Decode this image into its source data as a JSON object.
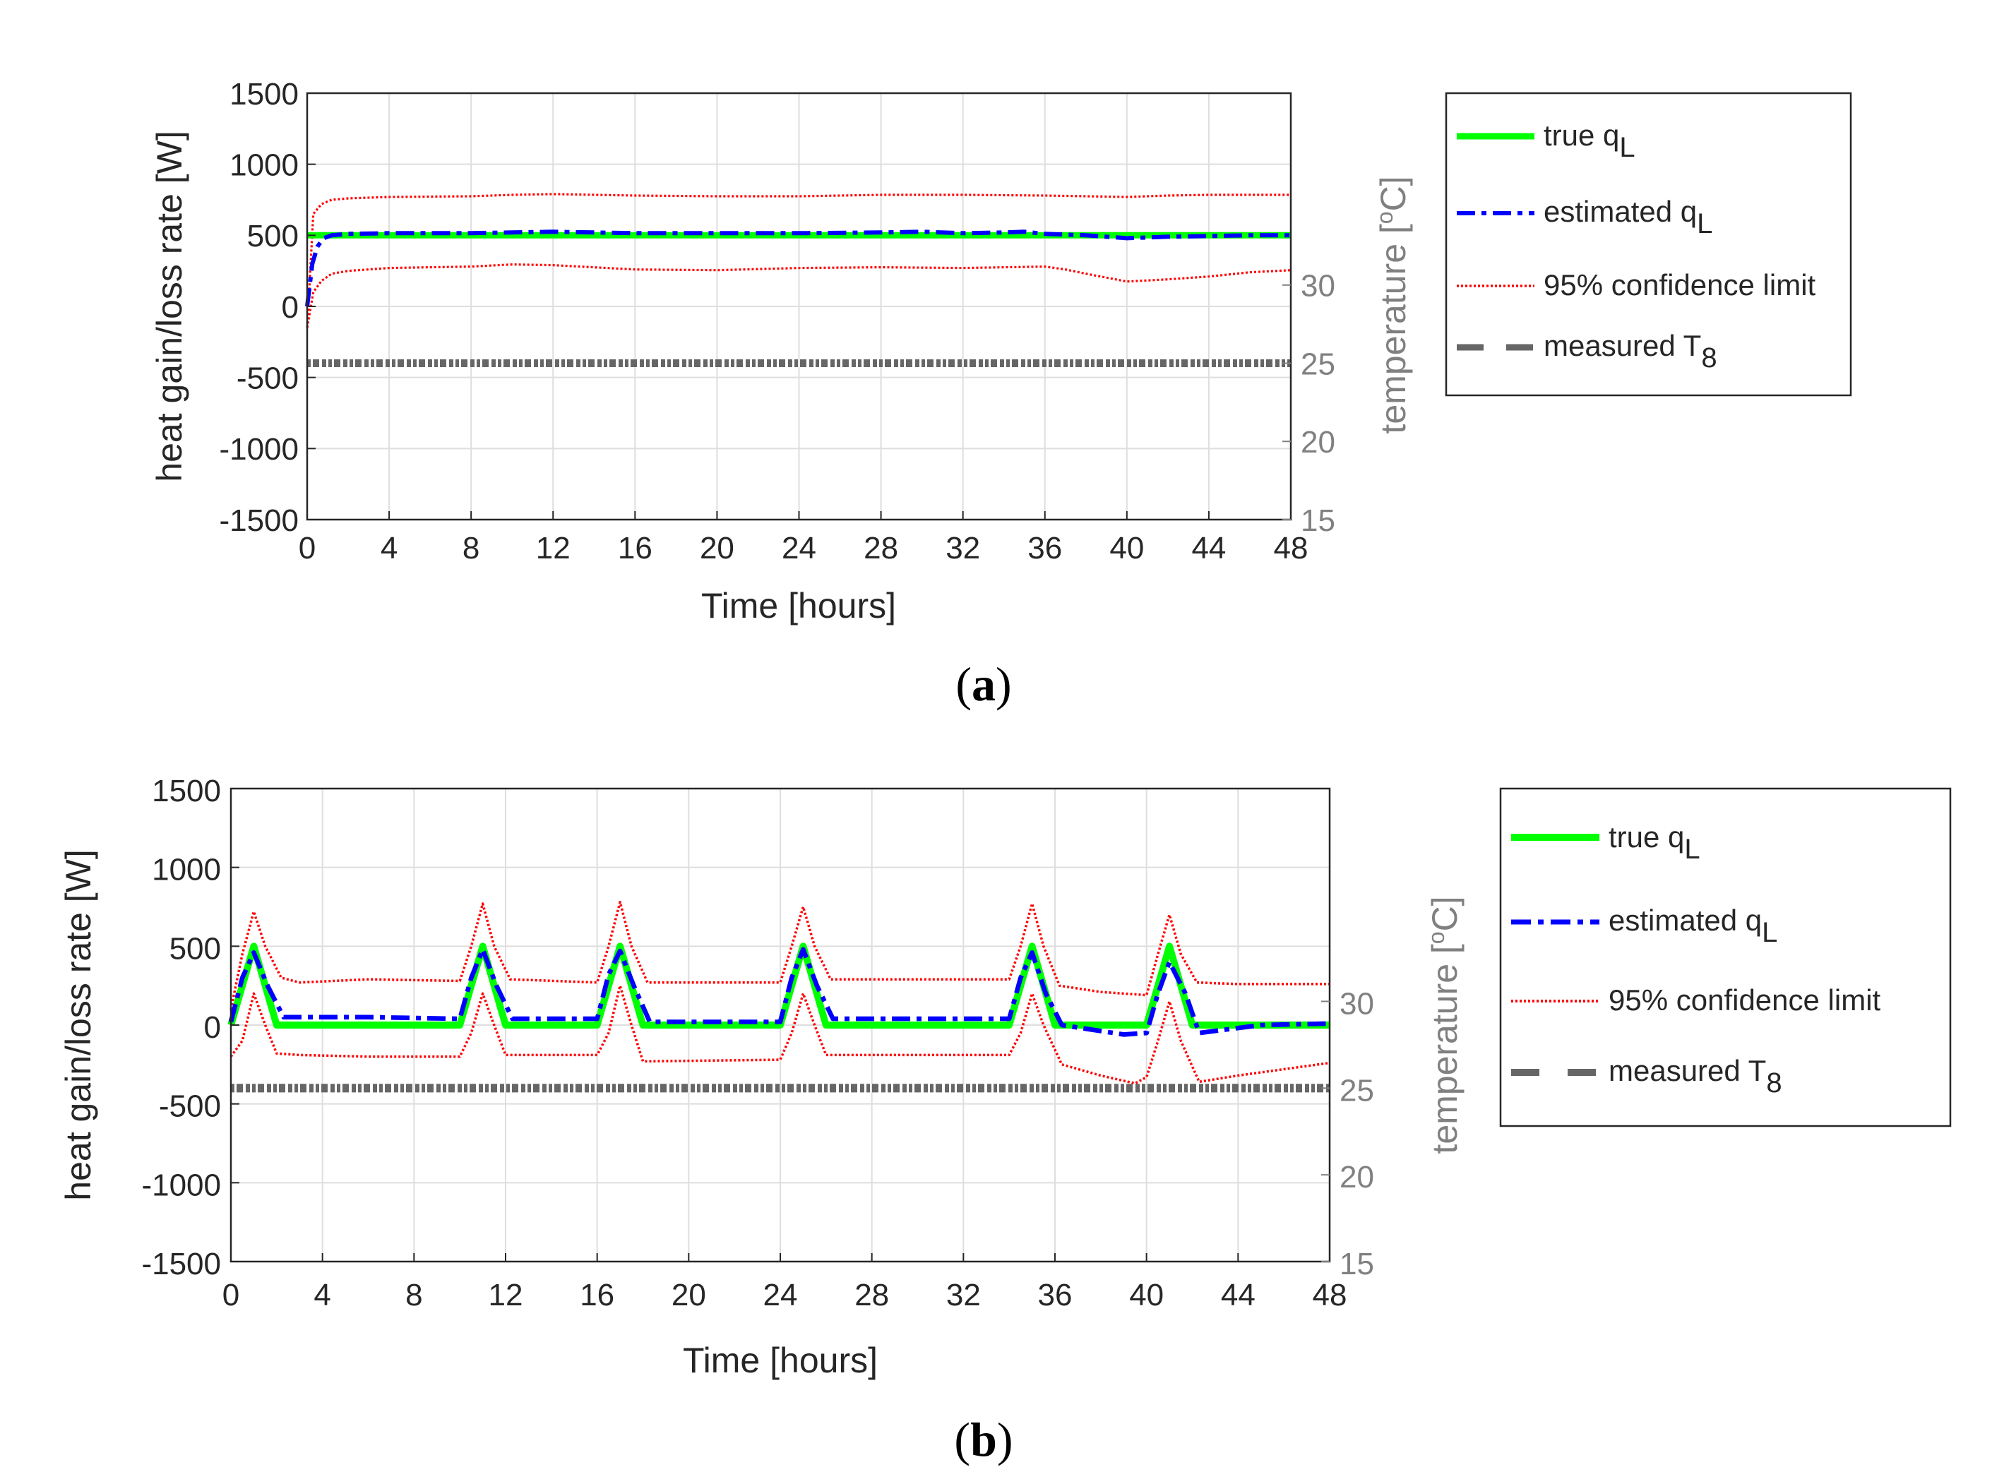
{
  "chart_data": [
    {
      "type": "line",
      "panel_label": "a",
      "xlabel": "Time [hours]",
      "ylabel": "heat gain/loss rate [W]",
      "ylabel_right": "temperature [",
      "ylabel_right_sup": "o",
      "ylabel_right_end": "C]",
      "xlim": [
        0,
        48
      ],
      "ylim": [
        -1500,
        1500
      ],
      "ylim_right": [
        15,
        42.27
      ],
      "x_ticks": [
        0,
        4,
        8,
        12,
        16,
        20,
        24,
        28,
        32,
        36,
        40,
        44,
        48
      ],
      "y_ticks": [
        -1500,
        -1000,
        -500,
        0,
        500,
        1000,
        1500
      ],
      "y_ticks_right": [
        15,
        20,
        25,
        30
      ],
      "grid": true,
      "legend_position": "outside-right",
      "legend": [
        {
          "key": "true",
          "label": "true q",
          "sub": "L"
        },
        {
          "key": "estimated",
          "label": "estimated q",
          "sub": "L"
        },
        {
          "key": "confidence",
          "label": "95% confidence limit",
          "sub": ""
        },
        {
          "key": "measured",
          "label": "measured T",
          "sub": "8"
        }
      ],
      "series": [
        {
          "name": "true qL",
          "color": "#00ff00",
          "x": [
            0,
            48
          ],
          "y": [
            500,
            500
          ]
        },
        {
          "name": "estimated qL",
          "color": "#0000ff",
          "x": [
            0,
            0.25,
            0.5,
            0.8,
            1.2,
            2,
            4,
            8,
            10,
            12,
            16,
            20,
            24,
            28,
            30,
            32,
            34,
            35,
            36,
            38,
            40,
            42,
            44,
            46,
            48
          ],
          "y": [
            0,
            300,
            420,
            480,
            500,
            510,
            515,
            515,
            520,
            525,
            515,
            515,
            515,
            520,
            525,
            515,
            520,
            525,
            510,
            500,
            480,
            490,
            495,
            500,
            500
          ]
        },
        {
          "name": "95% confidence limit (upper)",
          "color": "#ff0000",
          "x": [
            0,
            0.3,
            0.7,
            1.2,
            2,
            4,
            8,
            10,
            12,
            16,
            20,
            24,
            28,
            32,
            36,
            38,
            40,
            42,
            44,
            46,
            48
          ],
          "y": [
            -150,
            650,
            720,
            750,
            760,
            770,
            775,
            785,
            790,
            780,
            775,
            775,
            785,
            785,
            780,
            775,
            770,
            780,
            785,
            785,
            785
          ]
        },
        {
          "name": "95% confidence limit (lower)",
          "color": "#ff0000",
          "x": [
            0,
            0.3,
            0.7,
            1.2,
            2,
            4,
            8,
            10,
            12,
            16,
            20,
            24,
            28,
            32,
            36,
            37,
            38,
            40,
            42,
            44,
            46,
            48
          ],
          "y": [
            -150,
            100,
            180,
            230,
            250,
            270,
            280,
            295,
            290,
            260,
            255,
            270,
            275,
            270,
            280,
            260,
            230,
            175,
            190,
            210,
            240,
            255
          ]
        },
        {
          "name": "measured T8",
          "color": "#666666",
          "axis": "right",
          "x": [
            0,
            48
          ],
          "y": [
            25,
            25
          ]
        }
      ]
    },
    {
      "type": "line",
      "panel_label": "b",
      "xlabel": "Time [hours]",
      "ylabel": "heat gain/loss rate [W]",
      "ylabel_right": "temperature [",
      "ylabel_right_sup": "o",
      "ylabel_right_end": "C]",
      "xlim": [
        0,
        48
      ],
      "ylim": [
        -1500,
        1500
      ],
      "ylim_right": [
        15,
        42.27
      ],
      "x_ticks": [
        0,
        4,
        8,
        12,
        16,
        20,
        24,
        28,
        32,
        36,
        40,
        44,
        48
      ],
      "y_ticks": [
        -1500,
        -1000,
        -500,
        0,
        500,
        1000,
        1500
      ],
      "y_ticks_right": [
        15,
        20,
        25,
        30
      ],
      "grid": true,
      "legend_position": "outside-right",
      "legend": [
        {
          "key": "true",
          "label": "true q",
          "sub": "L"
        },
        {
          "key": "estimated",
          "label": "estimated q",
          "sub": "L"
        },
        {
          "key": "confidence",
          "label": "95% confidence limit",
          "sub": ""
        },
        {
          "key": "measured",
          "label": "measured T",
          "sub": "8"
        }
      ],
      "series": [
        {
          "name": "true qL",
          "color": "#00ff00",
          "x": [
            0,
            1,
            2,
            10,
            11,
            12,
            16,
            17,
            18,
            24,
            25,
            26,
            34,
            35,
            36,
            40,
            41,
            42,
            48
          ],
          "y": [
            0,
            500,
            0,
            0,
            500,
            0,
            0,
            500,
            0,
            0,
            500,
            0,
            0,
            500,
            0,
            0,
            500,
            0,
            0
          ]
        },
        {
          "name": "estimated qL",
          "color": "#0000ff",
          "x": [
            0,
            0.5,
            1,
            1.6,
            2.3,
            6,
            10,
            10.5,
            11,
            11.6,
            12.3,
            16,
            16.5,
            17,
            17.6,
            18.3,
            24,
            24.5,
            25,
            25.6,
            26.3,
            34,
            34.5,
            35,
            35.6,
            36.3,
            39,
            40,
            40.5,
            41,
            41.7,
            42.3,
            45,
            48
          ],
          "y": [
            20,
            300,
            460,
            250,
            50,
            50,
            40,
            300,
            480,
            250,
            40,
            40,
            320,
            470,
            250,
            20,
            20,
            300,
            480,
            250,
            40,
            40,
            300,
            460,
            200,
            0,
            -60,
            -50,
            200,
            400,
            200,
            -50,
            0,
            10
          ]
        },
        {
          "name": "95% confidence limit (upper)",
          "color": "#ff0000",
          "x": [
            0,
            0.5,
            1,
            1.5,
            2.2,
            3,
            6,
            10,
            10.5,
            11,
            11.5,
            12.2,
            16,
            16.5,
            17,
            17.5,
            18.2,
            24,
            24.5,
            25,
            25.5,
            26.2,
            34,
            34.5,
            35,
            35.5,
            36.2,
            38,
            40,
            40.5,
            41,
            41.5,
            42.2,
            44,
            48
          ],
          "y": [
            100,
            450,
            720,
            500,
            300,
            270,
            290,
            280,
            500,
            770,
            500,
            290,
            270,
            500,
            780,
            500,
            270,
            270,
            500,
            750,
            500,
            290,
            290,
            500,
            770,
            500,
            250,
            210,
            190,
            450,
            700,
            450,
            270,
            260,
            260
          ]
        },
        {
          "name": "95% confidence limit (lower)",
          "color": "#ff0000",
          "x": [
            0,
            0.5,
            1,
            1.5,
            2,
            3,
            6,
            10,
            10.5,
            11,
            11.5,
            12,
            16,
            16.5,
            17,
            17.5,
            18,
            24,
            24.5,
            25,
            25.5,
            26,
            34,
            34.5,
            35,
            35.5,
            36.3,
            38,
            39.5,
            40,
            40.5,
            41,
            41.5,
            42.3,
            44,
            48
          ],
          "y": [
            -200,
            -100,
            200,
            0,
            -180,
            -190,
            -200,
            -200,
            -50,
            200,
            0,
            -190,
            -190,
            -50,
            250,
            0,
            -230,
            -220,
            -50,
            200,
            0,
            -190,
            -190,
            -50,
            200,
            0,
            -250,
            -320,
            -370,
            -330,
            -100,
            150,
            -100,
            -360,
            -320,
            -240
          ]
        },
        {
          "name": "measured T8",
          "color": "#666666",
          "axis": "right",
          "x": [
            0,
            48
          ],
          "y": [
            25,
            25
          ]
        }
      ]
    }
  ]
}
